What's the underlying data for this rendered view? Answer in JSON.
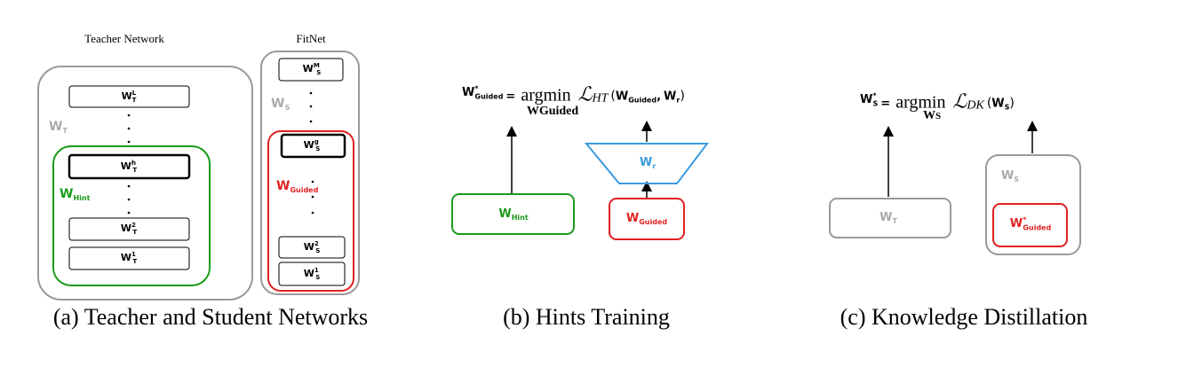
{
  "panel_a": {
    "teacher_title": "Teacher Network",
    "student_title": "FitNet",
    "teacher_label": {
      "base": "W",
      "sub": "T"
    },
    "hint_label": {
      "base": "W",
      "sub": "Hint"
    },
    "teacher_layers": [
      {
        "base": "W",
        "sub": "T",
        "sup": "L"
      },
      {
        "base": "W",
        "sub": "T",
        "sup": "h"
      },
      {
        "base": "W",
        "sub": "T",
        "sup": "2"
      },
      {
        "base": "W",
        "sub": "T",
        "sup": "1"
      }
    ],
    "student_label": {
      "base": "W",
      "sub": "S"
    },
    "guided_label": {
      "base": "W",
      "sub": "Guided"
    },
    "student_layers": [
      {
        "base": "W",
        "sub": "S",
        "sup": "M"
      },
      {
        "base": "W",
        "sub": "S",
        "sup": "g"
      },
      {
        "base": "W",
        "sub": "S",
        "sup": "2"
      },
      {
        "base": "W",
        "sub": "S",
        "sup": "1"
      }
    ],
    "caption": "(a) Teacher and Student Networks"
  },
  "panel_b": {
    "formula": {
      "lhs": {
        "base": "W",
        "sup": "*",
        "sub": "Guided"
      },
      "equals": "=",
      "operator": "argmin",
      "operator_sub": {
        "base": "W",
        "sub": "Guided"
      },
      "loss": {
        "base": "ℒ",
        "sub": "HT"
      },
      "open": "(",
      "arg1": {
        "base": "W",
        "sub": "Guided"
      },
      "comma": ",",
      "arg2": {
        "base": "W",
        "sub": "r"
      },
      "close": ")"
    },
    "hint_box": {
      "base": "W",
      "sub": "Hint"
    },
    "guided_box": {
      "base": "W",
      "sub": "Guided"
    },
    "regressor": {
      "base": "W",
      "sub": "r"
    },
    "caption": "(b) Hints Training"
  },
  "panel_c": {
    "formula": {
      "lhs": {
        "base": "W",
        "sup": "*",
        "sub": "S"
      },
      "equals": "=",
      "operator": "argmin",
      "operator_sub": {
        "base": "W",
        "sub": "S"
      },
      "loss": {
        "base": "ℒ",
        "sub": "DK"
      },
      "open": "(",
      "arg1": {
        "base": "W",
        "sub": "S"
      },
      "close": ")"
    },
    "teacher_box": {
      "base": "W",
      "sub": "T"
    },
    "student_label": {
      "base": "W",
      "sub": "S"
    },
    "guided_box": {
      "base": "W",
      "sup": "*",
      "sub": "Guided"
    },
    "caption": "(c) Knowledge Distillation"
  }
}
